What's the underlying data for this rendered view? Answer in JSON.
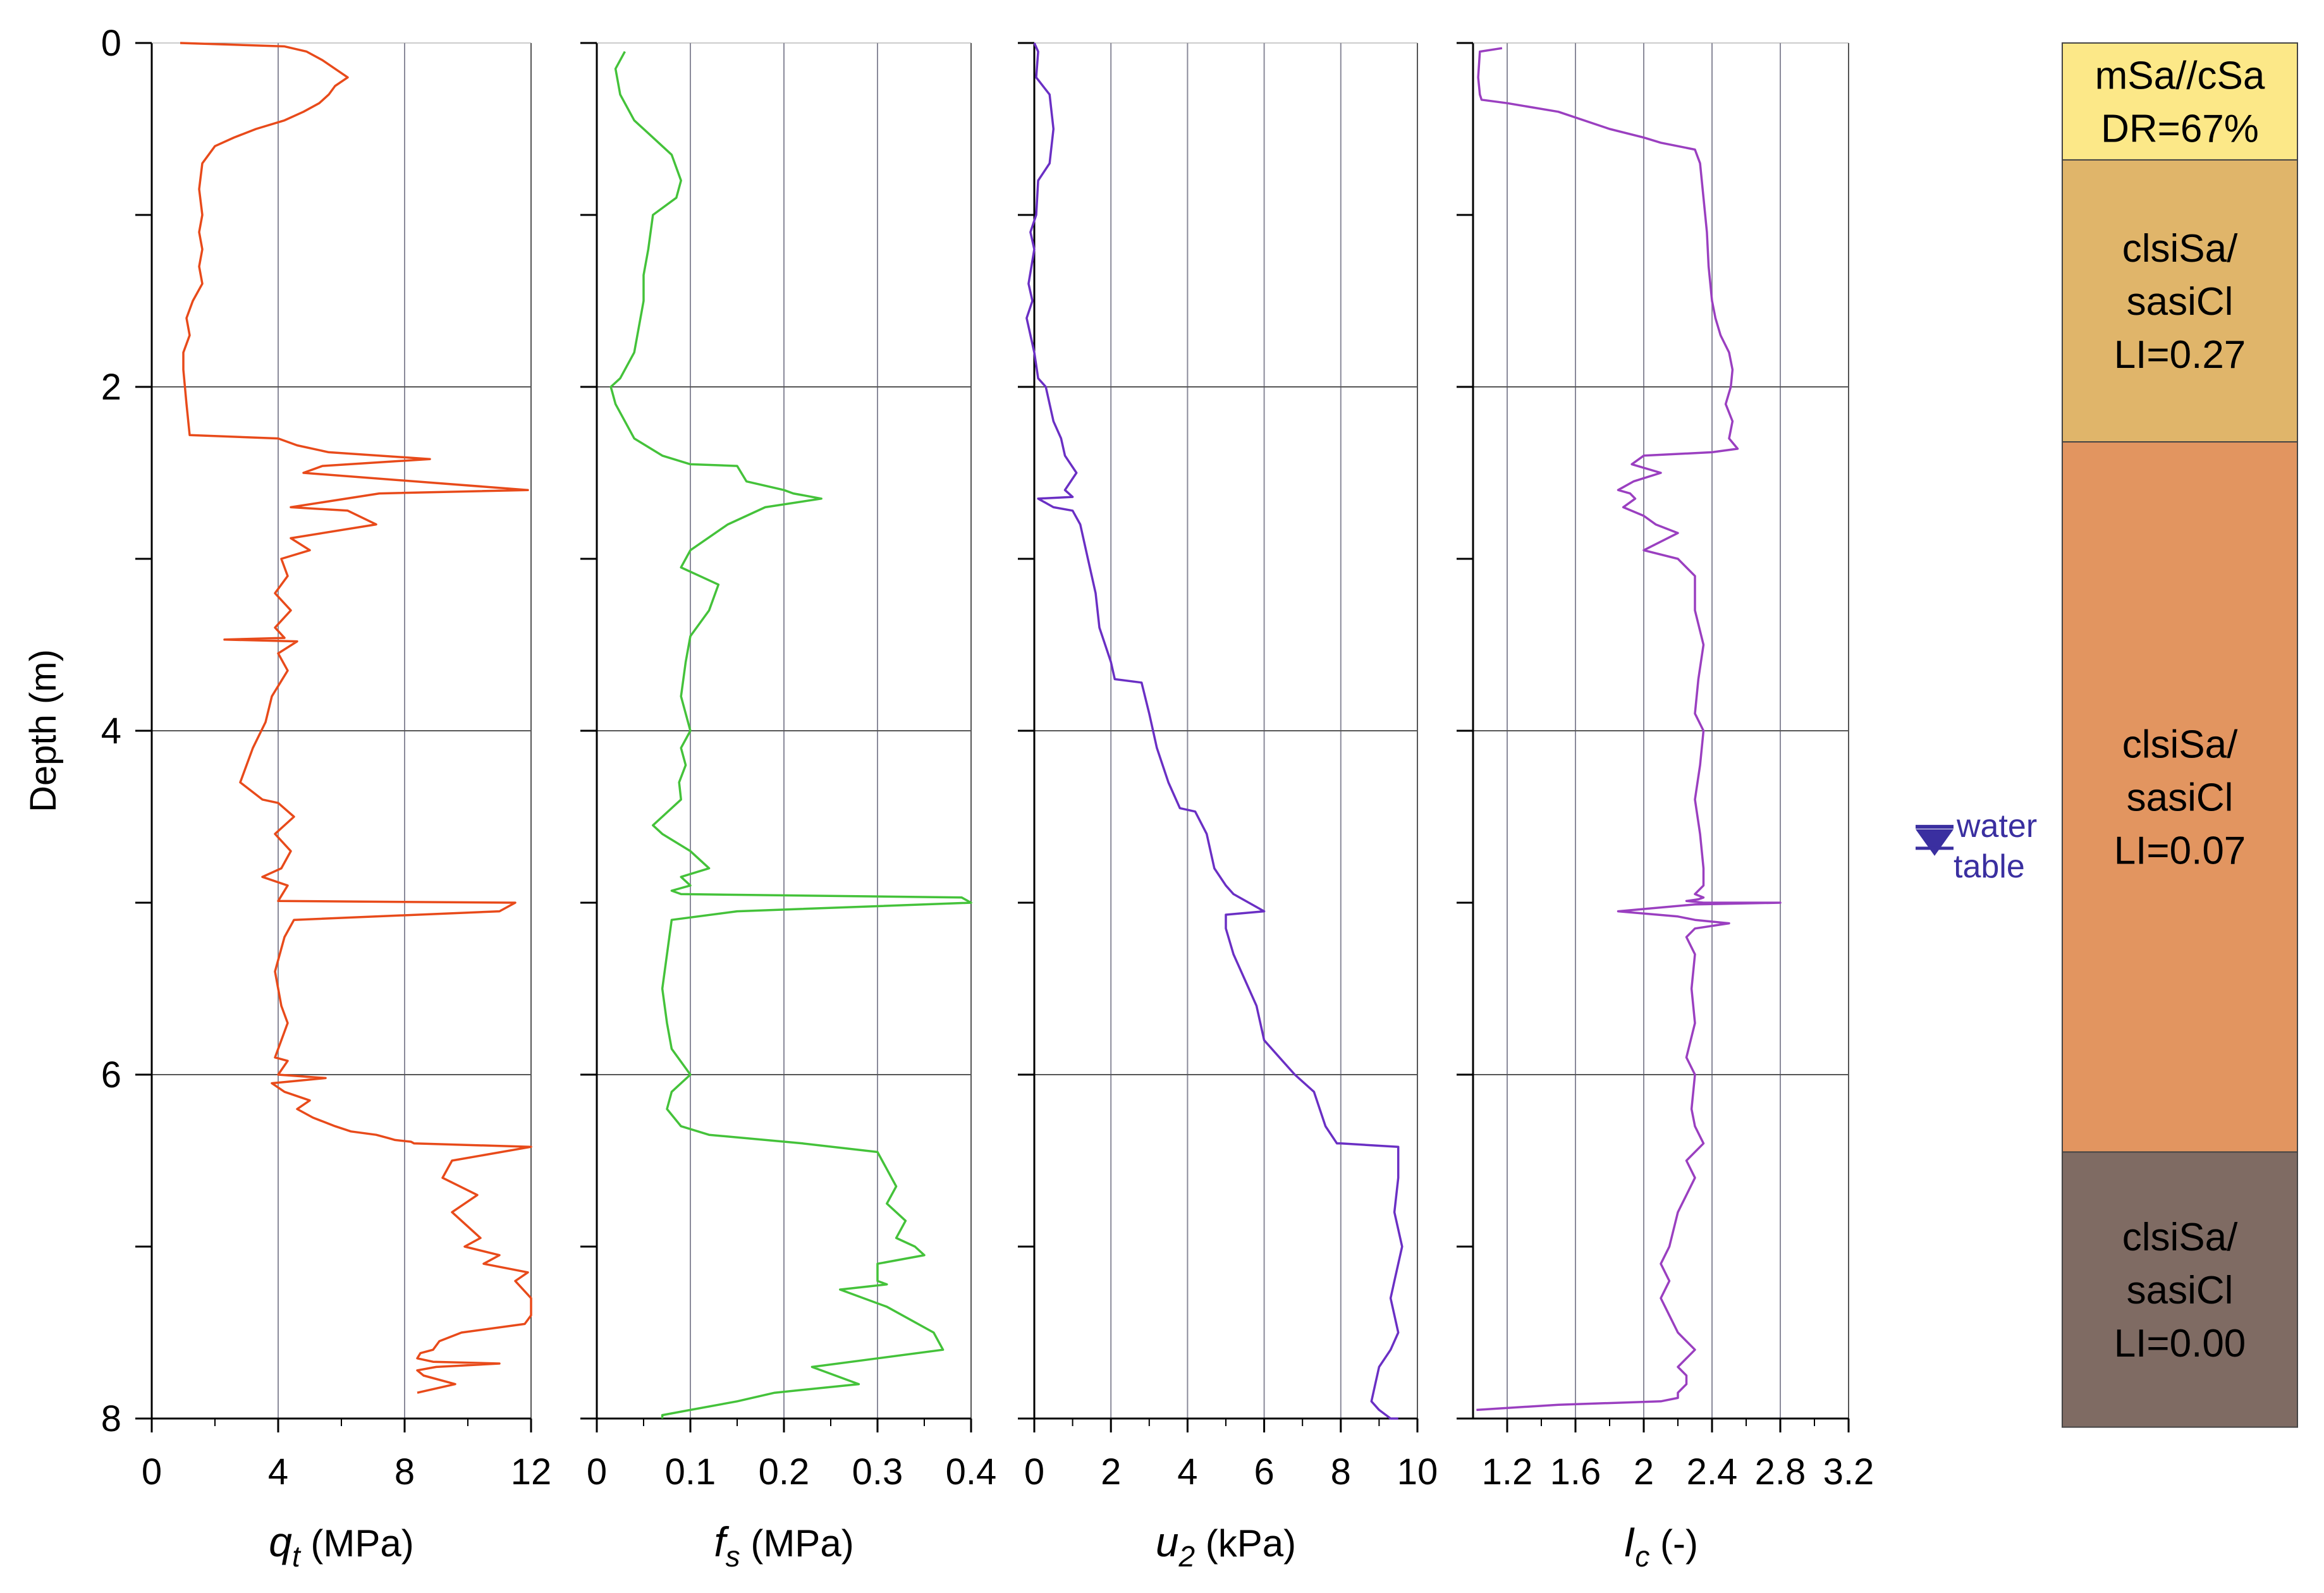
{
  "chart_data": [
    {
      "type": "line",
      "xlabel": {
        "symbol": "q",
        "sub": "t",
        "unit": " (MPa)"
      },
      "ylabel": "Depth (m)",
      "xlim": [
        0,
        12
      ],
      "xticks": [
        0,
        4,
        8,
        12
      ],
      "ylim": [
        0,
        8
      ],
      "yticks": [
        0,
        2,
        4,
        6,
        8
      ],
      "series": [
        {
          "color": "#e84a1a",
          "x": [
            0.9,
            4.2,
            4.9,
            5.4,
            5.8,
            6.2,
            5.8,
            5.6,
            5.3,
            4.8,
            4.2,
            3.3,
            2.6,
            2.0,
            1.6,
            1.5,
            1.6,
            1.5,
            1.6,
            1.5,
            1.6,
            1.3,
            1.1,
            1.2,
            1.0,
            1.0,
            1.1,
            1.2,
            4.0,
            4.6,
            5.6,
            8.8,
            5.4,
            4.8,
            11.9,
            7.2,
            4.4,
            6.2,
            7.1,
            4.4,
            5.0,
            4.1,
            4.3,
            3.9,
            4.4,
            3.9,
            4.2,
            2.3,
            4.6,
            4.0,
            4.3,
            3.8,
            3.6,
            3.2,
            2.8,
            3.5,
            4.0,
            4.5,
            3.9,
            4.4,
            4.1,
            3.5,
            4.3,
            4.0,
            11.5,
            11.0,
            4.5,
            4.2,
            3.9,
            4.1,
            4.3,
            4.1,
            3.9,
            4.3,
            4.0,
            5.5,
            3.8,
            4.2,
            5.0,
            4.6,
            5.1,
            5.8,
            6.3,
            7.1,
            7.5,
            7.7,
            8.2,
            8.3,
            12.0,
            9.5,
            9.2,
            10.3,
            9.5,
            9.8,
            10.4,
            9.9,
            11.0,
            10.5,
            11.9,
            11.5,
            12.0,
            12.0,
            11.8,
            9.8,
            9.1,
            8.9,
            8.5,
            8.4,
            8.9,
            11.0,
            9.0,
            8.4,
            8.6,
            9.6,
            8.4
          ],
          "y": [
            0.0,
            0.02,
            0.05,
            0.1,
            0.15,
            0.2,
            0.25,
            0.3,
            0.35,
            0.4,
            0.45,
            0.5,
            0.55,
            0.6,
            0.7,
            0.85,
            1.0,
            1.1,
            1.2,
            1.3,
            1.4,
            1.5,
            1.6,
            1.7,
            1.8,
            1.9,
            2.1,
            2.28,
            2.3,
            2.34,
            2.38,
            2.42,
            2.46,
            2.5,
            2.6,
            2.62,
            2.7,
            2.72,
            2.8,
            2.88,
            2.95,
            3.0,
            3.1,
            3.2,
            3.3,
            3.4,
            3.46,
            3.47,
            3.48,
            3.55,
            3.65,
            3.8,
            3.95,
            4.1,
            4.3,
            4.4,
            4.42,
            4.5,
            4.6,
            4.7,
            4.8,
            4.85,
            4.9,
            4.99,
            5.0,
            5.05,
            5.1,
            5.2,
            5.4,
            5.6,
            5.7,
            5.8,
            5.9,
            5.92,
            6.0,
            6.02,
            6.05,
            6.1,
            6.15,
            6.2,
            6.25,
            6.3,
            6.33,
            6.35,
            6.37,
            6.38,
            6.39,
            6.4,
            6.42,
            6.5,
            6.6,
            6.7,
            6.8,
            6.85,
            6.95,
            7.0,
            7.05,
            7.1,
            7.15,
            7.2,
            7.3,
            7.4,
            7.45,
            7.5,
            7.55,
            7.6,
            7.62,
            7.65,
            7.67,
            7.68,
            7.7,
            7.72,
            7.75,
            7.8,
            7.85
          ]
        }
      ]
    },
    {
      "type": "line",
      "xlabel": {
        "symbol": "f",
        "sub": "s",
        "unit": " (MPa)"
      },
      "xlim": [
        0,
        0.4
      ],
      "xticks": [
        0,
        0.1,
        0.2,
        0.3,
        0.4
      ],
      "ylim": [
        0,
        8
      ],
      "series": [
        {
          "color": "#44c23a",
          "x": [
            0.03,
            0.025,
            0.02,
            0.025,
            0.04,
            0.06,
            0.08,
            0.09,
            0.085,
            0.06,
            0.055,
            0.05,
            0.05,
            0.045,
            0.04,
            0.025,
            0.015,
            0.02,
            0.04,
            0.07,
            0.1,
            0.15,
            0.16,
            0.2,
            0.21,
            0.24,
            0.18,
            0.14,
            0.1,
            0.09,
            0.11,
            0.13,
            0.12,
            0.1,
            0.095,
            0.09,
            0.1,
            0.09,
            0.095,
            0.088,
            0.09,
            0.07,
            0.06,
            0.07,
            0.1,
            0.12,
            0.09,
            0.1,
            0.08,
            0.09,
            0.39,
            0.4,
            0.15,
            0.08,
            0.075,
            0.07,
            0.075,
            0.08,
            0.1,
            0.08,
            0.075,
            0.09,
            0.12,
            0.22,
            0.3,
            0.31,
            0.32,
            0.31,
            0.33,
            0.32,
            0.34,
            0.35,
            0.3,
            0.3,
            0.31,
            0.26,
            0.31,
            0.36,
            0.37,
            0.3,
            0.23,
            0.28,
            0.19,
            0.15,
            0.1,
            0.07,
            0.07
          ],
          "y": [
            0.05,
            0.1,
            0.15,
            0.3,
            0.45,
            0.55,
            0.65,
            0.8,
            0.9,
            1.0,
            1.2,
            1.35,
            1.5,
            1.65,
            1.8,
            1.95,
            2.0,
            2.1,
            2.3,
            2.4,
            2.45,
            2.46,
            2.55,
            2.6,
            2.62,
            2.65,
            2.7,
            2.8,
            2.95,
            3.05,
            3.1,
            3.15,
            3.3,
            3.45,
            3.6,
            3.8,
            4.0,
            4.1,
            4.2,
            4.3,
            4.4,
            4.5,
            4.55,
            4.6,
            4.7,
            4.8,
            4.85,
            4.9,
            4.93,
            4.95,
            4.97,
            5.0,
            5.05,
            5.1,
            5.3,
            5.5,
            5.7,
            5.85,
            6.0,
            6.1,
            6.2,
            6.3,
            6.35,
            6.4,
            6.45,
            6.55,
            6.65,
            6.75,
            6.85,
            6.95,
            7.0,
            7.05,
            7.1,
            7.2,
            7.22,
            7.25,
            7.35,
            7.5,
            7.6,
            7.65,
            7.7,
            7.8,
            7.85,
            7.9,
            7.95,
            7.98,
            8.0
          ]
        }
      ]
    },
    {
      "type": "line",
      "xlabel": {
        "symbol": "u",
        "sub": "2",
        "unit": " (kPa)"
      },
      "xlim": [
        0,
        10
      ],
      "xticks": [
        0,
        2,
        4,
        6,
        8,
        10
      ],
      "ylim": [
        0,
        8
      ],
      "series": [
        {
          "color": "#6a2fc4",
          "x": [
            0.0,
            0.1,
            0.05,
            0.4,
            0.5,
            0.4,
            0.1,
            0.05,
            -0.1,
            0.0,
            -0.15,
            -0.05,
            -0.2,
            0.0,
            0.1,
            0.3,
            0.5,
            0.7,
            0.8,
            1.1,
            0.8,
            1.0,
            0.1,
            0.5,
            1.0,
            1.2,
            1.4,
            1.6,
            1.7,
            2.0,
            2.1,
            2.8,
            3.0,
            3.2,
            3.5,
            3.8,
            4.2,
            4.5,
            4.7,
            5.0,
            5.2,
            6.0,
            5.0,
            5.0,
            5.2,
            5.6,
            5.8,
            6.0,
            6.4,
            6.8,
            7.3,
            7.6,
            7.9,
            8.0,
            9.5,
            9.5,
            9.4,
            9.6,
            9.4,
            9.3,
            9.5,
            9.3,
            9.0,
            8.9,
            8.8,
            9.0,
            9.3,
            9.5
          ],
          "y": [
            0.0,
            0.05,
            0.2,
            0.3,
            0.5,
            0.7,
            0.8,
            1.0,
            1.1,
            1.2,
            1.4,
            1.5,
            1.6,
            1.8,
            1.95,
            2.0,
            2.2,
            2.3,
            2.4,
            2.5,
            2.6,
            2.64,
            2.65,
            2.7,
            2.72,
            2.8,
            3.0,
            3.2,
            3.4,
            3.6,
            3.7,
            3.72,
            3.9,
            4.1,
            4.3,
            4.45,
            4.47,
            4.6,
            4.8,
            4.9,
            4.95,
            5.05,
            5.07,
            5.15,
            5.3,
            5.5,
            5.6,
            5.8,
            5.9,
            6.0,
            6.1,
            6.3,
            6.4,
            6.4,
            6.42,
            6.6,
            6.8,
            7.0,
            7.2,
            7.3,
            7.5,
            7.6,
            7.7,
            7.8,
            7.9,
            7.95,
            8.0,
            8.0
          ]
        }
      ]
    },
    {
      "type": "line",
      "xlabel": {
        "symbol": "I",
        "sub": "c",
        "unit": " (-)"
      },
      "xlim": [
        1,
        3.2
      ],
      "xticks": [
        1.2,
        1.6,
        2,
        2.4,
        2.8,
        3.2
      ],
      "ylim": [
        0,
        8
      ],
      "series": [
        {
          "color": "#9a3fc0",
          "x": [
            1.17,
            1.04,
            1.03,
            1.04,
            1.05,
            1.2,
            1.5,
            1.8,
            2.0,
            2.1,
            2.2,
            2.3,
            2.33,
            2.35,
            2.37,
            2.38,
            2.4,
            2.42,
            2.45,
            2.5,
            2.52,
            2.51,
            2.48,
            2.52,
            2.5,
            2.55,
            2.4,
            2.0,
            1.93,
            2.1,
            1.94,
            1.85,
            1.92,
            1.95,
            1.88,
            2.0,
            2.07,
            2.2,
            2.1,
            2.0,
            2.2,
            2.3,
            2.3,
            2.35,
            2.32,
            2.3,
            2.35,
            2.33,
            2.3,
            2.33,
            2.35,
            2.35,
            2.3,
            2.35,
            2.32,
            2.25,
            2.35,
            2.75,
            2.8,
            2.3,
            1.85,
            2.2,
            2.3,
            2.5,
            2.3,
            2.25,
            2.3,
            2.28,
            2.3,
            2.25,
            2.3,
            2.28,
            2.3,
            2.35,
            2.25,
            2.3,
            2.2,
            2.15,
            2.1,
            2.15,
            2.1,
            2.15,
            2.2,
            2.3,
            2.2,
            2.25,
            2.25,
            2.2,
            2.2,
            2.1,
            1.5,
            1.02
          ],
          "y": [
            0.03,
            0.05,
            0.2,
            0.3,
            0.33,
            0.35,
            0.4,
            0.5,
            0.55,
            0.58,
            0.6,
            0.62,
            0.7,
            0.9,
            1.1,
            1.3,
            1.5,
            1.6,
            1.7,
            1.8,
            1.9,
            2.0,
            2.1,
            2.2,
            2.3,
            2.36,
            2.38,
            2.4,
            2.45,
            2.5,
            2.55,
            2.6,
            2.62,
            2.65,
            2.7,
            2.75,
            2.8,
            2.85,
            2.9,
            2.95,
            3.0,
            3.1,
            3.3,
            3.5,
            3.7,
            3.9,
            4.0,
            4.2,
            4.4,
            4.6,
            4.8,
            4.9,
            4.95,
            4.97,
            4.98,
            4.99,
            5.0,
            5.0,
            5.0,
            5.01,
            5.05,
            5.08,
            5.1,
            5.12,
            5.15,
            5.2,
            5.3,
            5.5,
            5.7,
            5.9,
            6.0,
            6.2,
            6.3,
            6.4,
            6.5,
            6.6,
            6.8,
            7.0,
            7.1,
            7.2,
            7.3,
            7.4,
            7.5,
            7.6,
            7.7,
            7.75,
            7.8,
            7.85,
            7.88,
            7.9,
            7.92,
            7.95
          ]
        }
      ]
    }
  ],
  "soil_column": [
    {
      "top": 0.0,
      "bottom": 0.68,
      "color": "#fce888",
      "lines": [
        "mSa//cSa",
        "DR=67%"
      ]
    },
    {
      "top": 0.68,
      "bottom": 2.32,
      "color": "#e0b56a",
      "lines": [
        "clsiSa/",
        "sasiCl",
        "LI=0.27"
      ]
    },
    {
      "top": 2.32,
      "bottom": 6.45,
      "color": "#e29560",
      "lines": [
        "clsiSa/",
        "sasiCl",
        "LI=0.07"
      ]
    },
    {
      "top": 6.45,
      "bottom": 8.05,
      "color": "#7f6b63",
      "lines": [
        "clsiSa/",
        "sasiCl",
        "LI=0.00"
      ]
    }
  ],
  "water_table": {
    "depth": 4.72,
    "lines": [
      "water",
      "table"
    ],
    "color": "#3a2fa0"
  }
}
